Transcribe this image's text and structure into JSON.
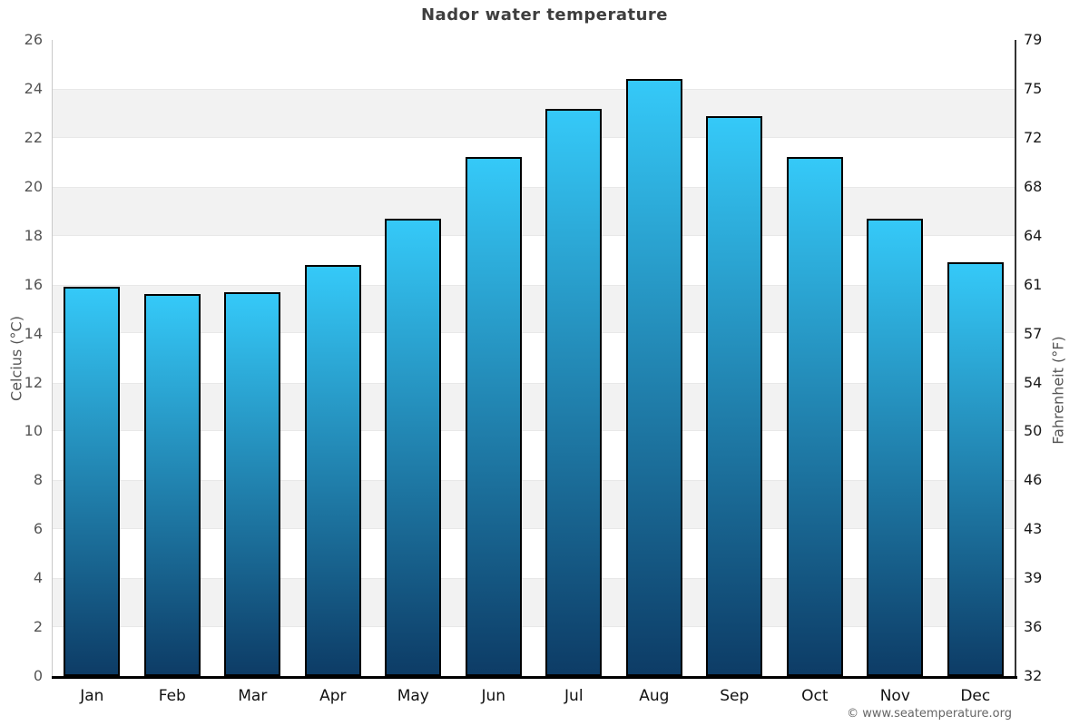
{
  "chart_data": {
    "type": "bar",
    "title": "Nador water temperature",
    "categories": [
      "Jan",
      "Feb",
      "Mar",
      "Apr",
      "May",
      "Jun",
      "Jul",
      "Aug",
      "Sep",
      "Oct",
      "Nov",
      "Dec"
    ],
    "values": [
      15.9,
      15.6,
      15.7,
      16.8,
      18.7,
      21.2,
      23.2,
      24.4,
      22.9,
      21.2,
      18.7,
      16.9
    ],
    "ylabel_left": "Celcius (°C)",
    "ylabel_right": "Fahrenheit (°F)",
    "y_left_ticks": [
      26,
      24,
      22,
      20,
      18,
      16,
      14,
      12,
      10,
      8,
      6,
      4,
      2,
      0
    ],
    "y_right_ticks": [
      79,
      75,
      72,
      68,
      64,
      61,
      57,
      54,
      50,
      46,
      43,
      39,
      36,
      32
    ],
    "ylim": [
      0,
      26
    ],
    "grid": "alternating-horizontal-bands",
    "gray_band_top_values": [
      24,
      20,
      16,
      12,
      8,
      4
    ],
    "legend": "none",
    "colors": {
      "bar_gradient_top": "#35c9f8",
      "bar_gradient_bottom": "#0d3c66",
      "bar_border": "#000000",
      "band_gray": "#f2f2f2",
      "band_edge": "#e8e8e8",
      "title_text": "#3e3e3e",
      "left_tick_text": "#555555",
      "right_tick_text": "#1a1a1a",
      "month_text": "#111111",
      "axis_line_left": "#c9c9c9",
      "axis_line_right": "#333333",
      "baseline": "#000000",
      "axis_title_text": "#555555",
      "copyright_text": "#666666"
    }
  },
  "footer": {
    "copyright": "© www.seatemperature.org"
  }
}
